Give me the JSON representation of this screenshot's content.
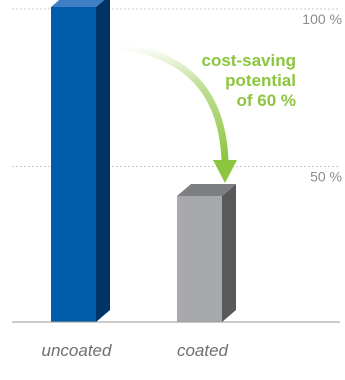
{
  "chart_data": {
    "type": "bar",
    "categories": [
      "uncoated",
      "coated"
    ],
    "values": [
      100,
      40
    ],
    "ylim": [
      0,
      100
    ],
    "yticks": [
      50,
      100
    ],
    "ytick_labels": [
      "50 %",
      "100 %"
    ],
    "bar_colors": [
      {
        "front": "#005ca9",
        "side": "#003366",
        "top": "#3f7fc4"
      },
      {
        "front": "#a7a9ac",
        "side": "#58595b",
        "top": "#7d7f82"
      }
    ],
    "annotation": {
      "lines": [
        "cost-saving",
        "potential",
        "of 60 %"
      ],
      "color": "#8cc63f"
    },
    "grid": true
  }
}
